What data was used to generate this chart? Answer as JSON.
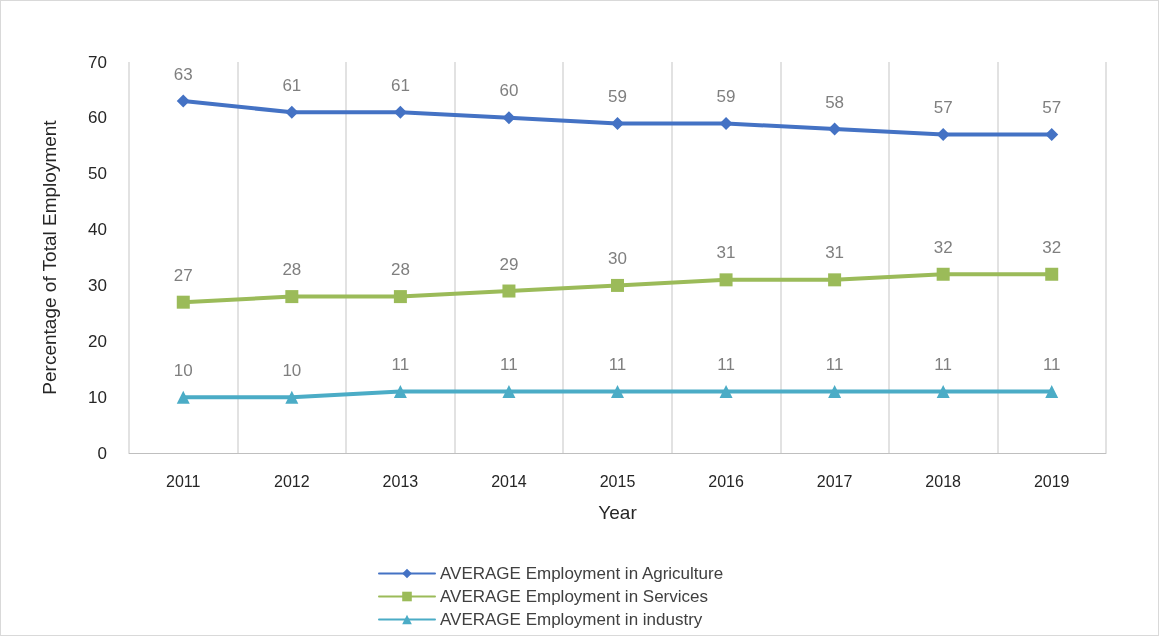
{
  "chart_data": {
    "type": "line",
    "xlabel": "Year",
    "ylabel": "Percentage of Total Employment",
    "categories": [
      "2011",
      "2012",
      "2013",
      "2014",
      "2015",
      "2016",
      "2017",
      "2018",
      "2019"
    ],
    "series": [
      {
        "name": "AVERAGE Employment in Agriculture",
        "color": "#4472c4",
        "marker": "diamond",
        "values": [
          63,
          61,
          61,
          60,
          59,
          59,
          58,
          57,
          57
        ]
      },
      {
        "name": "AVERAGE Employment in Services",
        "color": "#9bbb59",
        "marker": "square",
        "values": [
          27,
          28,
          28,
          29,
          30,
          31,
          31,
          32,
          32
        ]
      },
      {
        "name": "AVERAGE Employment in industry",
        "color": "#4bacc6",
        "marker": "triangle",
        "values": [
          10,
          10,
          11,
          11,
          11,
          11,
          11,
          11,
          11
        ]
      }
    ],
    "ylim": [
      0,
      70
    ],
    "yticks": [
      0,
      10,
      20,
      30,
      40,
      50,
      60,
      70
    ],
    "grid": "x",
    "legend": "bottom",
    "data_labels": true,
    "line_style": "solid"
  }
}
